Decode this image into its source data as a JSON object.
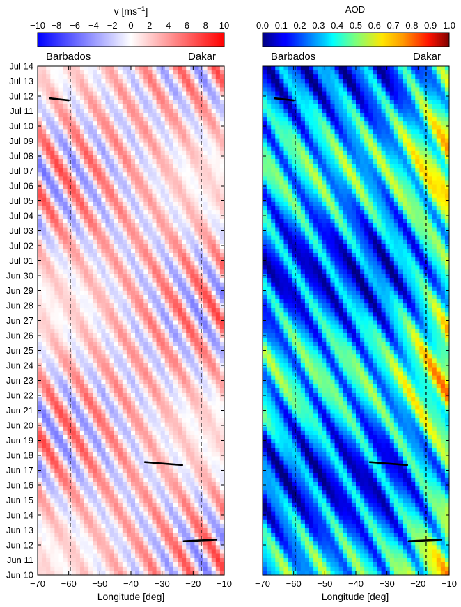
{
  "chart_data": [
    {
      "type": "heatmap",
      "variable": "v",
      "colorbar": {
        "label": "v [ms$^{-1}$]",
        "label_text": "v [ms",
        "label_sup": "−1",
        "label_end": "]",
        "ticks": [
          "−10",
          "−8",
          "−6",
          "−4",
          "−2",
          "0",
          "2",
          "4",
          "6",
          "8",
          "10"
        ],
        "range": [
          -10,
          10
        ],
        "colormap": "bwr"
      },
      "xlabel": "Longitude [deg]",
      "xlim": [
        -70,
        -10
      ],
      "xticks": [
        "−70",
        "−60",
        "−50",
        "−40",
        "−30",
        "−20",
        "−10"
      ],
      "yticks": [
        "Jun 10",
        "Jun 11",
        "Jun 12",
        "Jun 13",
        "Jun 14",
        "Jun 15",
        "Jun 16",
        "Jun 17",
        "Jun 18",
        "Jun 19",
        "Jun 20",
        "Jun 21",
        "Jun 22",
        "Jun 23",
        "Jun 24",
        "Jun 25",
        "Jun 26",
        "Jun 27",
        "Jun 28",
        "Jun 29",
        "Jun 30",
        "Jul 01",
        "Jul 02",
        "Jul 03",
        "Jul 04",
        "Jul 05",
        "Jul 06",
        "Jul 07",
        "Jul 08",
        "Jul 09",
        "Jul 10",
        "Jul 11",
        "Jul 12",
        "Jul 13",
        "Jul 14"
      ],
      "ylim": [
        "Jun 10",
        "Jul 14"
      ],
      "reference_lines": [
        {
          "label": "Barbados",
          "longitude": -59.5,
          "style": "dashed"
        },
        {
          "label": "Dakar",
          "longitude": -17.4,
          "style": "dashed"
        }
      ],
      "tracks": [
        {
          "from": [
            -66,
            "Jul 11.85"
          ],
          "to": [
            -60,
            "Jul 11.72"
          ]
        },
        {
          "from": [
            -35.5,
            "Jun 17.55"
          ],
          "to": [
            -23.5,
            "Jun 17.35"
          ]
        },
        {
          "from": [
            -23,
            "Jun 12.25"
          ],
          "to": [
            -12.5,
            "Jun 12.35"
          ]
        }
      ]
    },
    {
      "type": "heatmap",
      "variable": "AOD",
      "colorbar": {
        "label": "AOD",
        "ticks": [
          "0.0",
          "0.1",
          "0.2",
          "0.3",
          "0.4",
          "0.5",
          "0.6",
          "0.7",
          "0.8",
          "0.9",
          "1.0"
        ],
        "range": [
          0,
          1
        ],
        "colormap": "jet"
      },
      "xlabel": "Longitude [deg]",
      "xlim": [
        -70,
        -10
      ],
      "xticks": [
        "−70",
        "−60",
        "−50",
        "−40",
        "−30",
        "−20",
        "−10"
      ],
      "ylim": [
        "Jun 10",
        "Jul 14"
      ],
      "reference_lines": [
        {
          "label": "Barbados",
          "longitude": -59.5,
          "style": "dashed"
        },
        {
          "label": "Dakar",
          "longitude": -17.4,
          "style": "dashed"
        }
      ],
      "tracks": [
        {
          "from": [
            -66,
            "Jul 11.85"
          ],
          "to": [
            -60,
            "Jul 11.72"
          ]
        },
        {
          "from": [
            -35.5,
            "Jun 17.55"
          ],
          "to": [
            -23.5,
            "Jun 17.35"
          ]
        },
        {
          "from": [
            -23,
            "Jun 12.25"
          ],
          "to": [
            -12.5,
            "Jun 12.35"
          ]
        }
      ]
    }
  ]
}
